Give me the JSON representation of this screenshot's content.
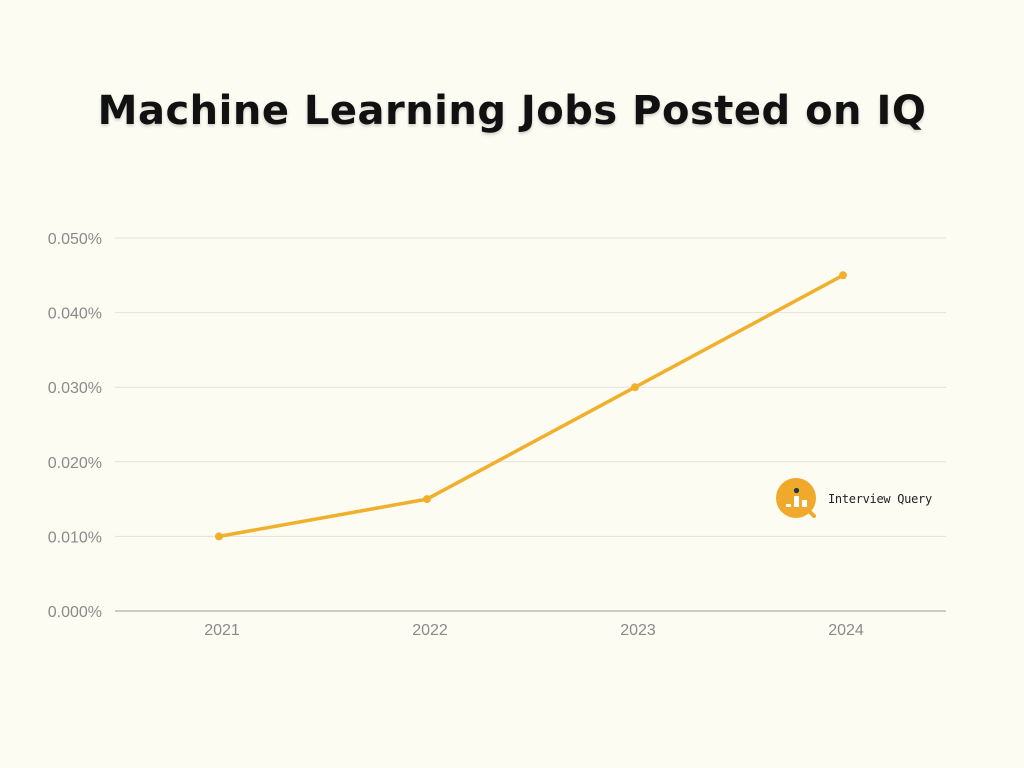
{
  "colors": {
    "background": "#fcfcf3",
    "line": "#f0b02c",
    "grid": "#e2e2da",
    "axis": "#9a9a9a",
    "tick_text": "#8a8a8a"
  },
  "chart_data": {
    "type": "line",
    "title": "Machine Learning Jobs Posted on IQ",
    "xlabel": "",
    "ylabel": "",
    "categories": [
      "2021",
      "2022",
      "2023",
      "2024"
    ],
    "series": [
      {
        "name": "Machine Learning Jobs Posted",
        "values": [
          0.01,
          0.015,
          0.03,
          0.045
        ]
      }
    ],
    "ylim": [
      0,
      0.05
    ],
    "yticks": [
      0.0,
      0.01,
      0.02,
      0.03,
      0.04,
      0.05
    ],
    "ytick_labels": [
      "0.000%",
      "0.010%",
      "0.020%",
      "0.030%",
      "0.040%",
      "0.050%"
    ],
    "grid": true,
    "legend": "none"
  },
  "watermark": {
    "text": "Interview Query",
    "icon": "interview-query-logo-icon"
  }
}
